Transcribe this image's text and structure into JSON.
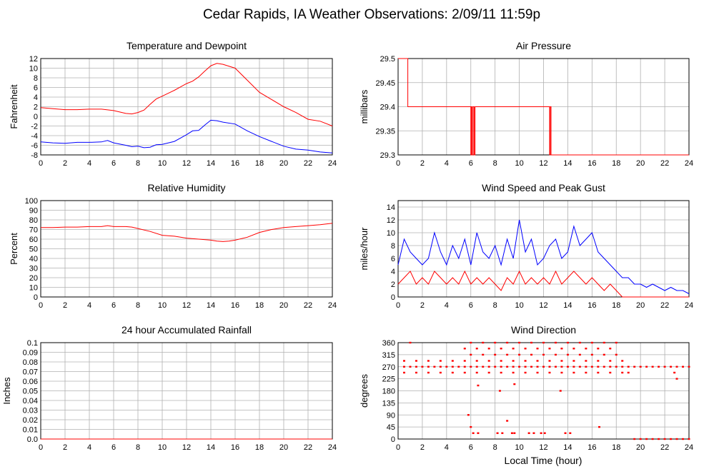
{
  "page": {
    "title": "Cedar Rapids, IA Weather Observations: 2/09/11 11:59p",
    "footer_xlabel": "Local Time (hour)"
  },
  "colors": {
    "primary": "#ff0000",
    "secondary": "#0000ff",
    "grid": "#b0b0b0",
    "axis": "#000000"
  },
  "chart_data": [
    {
      "id": "temperature",
      "type": "line",
      "title": "Temperature and Dewpoint",
      "ylabel": "Fahrenheit",
      "xlabel": "",
      "xlim": [
        0,
        24
      ],
      "ylim": [
        -8,
        12
      ],
      "xticks": [
        0,
        2,
        4,
        6,
        8,
        10,
        12,
        14,
        16,
        18,
        20,
        22,
        24
      ],
      "yticks": [
        -8,
        -6,
        -4,
        -2,
        0,
        2,
        4,
        6,
        8,
        10,
        12
      ],
      "ytick_labels": [
        "-8",
        "-6",
        "-4",
        "-2",
        "0",
        "2",
        "4",
        "6",
        "8",
        "10",
        "12"
      ],
      "grid": true,
      "noise": 0,
      "series": [
        {
          "color": "#ff0000",
          "x": [
            0,
            1,
            2,
            3,
            4,
            5,
            6,
            7,
            7.5,
            8,
            8.5,
            9,
            9.5,
            10,
            11,
            12,
            12.5,
            13,
            13.5,
            14,
            14.5,
            15,
            16,
            17,
            18,
            19,
            20,
            21,
            22,
            23,
            24
          ],
          "y": [
            1.8,
            1.6,
            1.4,
            1.4,
            1.5,
            1.5,
            1.2,
            0.6,
            0.5,
            0.8,
            1.3,
            2.5,
            3.6,
            4.2,
            5.4,
            6.8,
            7.3,
            8.2,
            9.4,
            10.5,
            11.0,
            10.8,
            10.0,
            7.5,
            5.0,
            3.5,
            2.0,
            0.8,
            -0.6,
            -1.0,
            -2.0
          ]
        },
        {
          "color": "#0000ff",
          "x": [
            0,
            1,
            2,
            3,
            4,
            5,
            5.5,
            6,
            7,
            7.5,
            8,
            8.5,
            9,
            9.5,
            10,
            11,
            12,
            12.5,
            13,
            13.5,
            14,
            14.5,
            15,
            16,
            17,
            18,
            19,
            20,
            21,
            22,
            23,
            24
          ],
          "y": [
            -5.3,
            -5.5,
            -5.6,
            -5.4,
            -5.4,
            -5.3,
            -5.0,
            -5.5,
            -6.0,
            -6.3,
            -6.2,
            -6.5,
            -6.4,
            -5.9,
            -5.8,
            -5.2,
            -3.8,
            -3.0,
            -2.9,
            -1.8,
            -0.8,
            -0.9,
            -1.2,
            -1.6,
            -3.0,
            -4.2,
            -5.2,
            -6.2,
            -6.8,
            -7.0,
            -7.4,
            -7.6
          ]
        }
      ]
    },
    {
      "id": "pressure",
      "type": "line",
      "title": "Air Pressure",
      "ylabel": "millibars",
      "xlabel": "",
      "xlim": [
        0,
        24
      ],
      "ylim": [
        29.3,
        29.5
      ],
      "xticks": [
        0,
        2,
        4,
        6,
        8,
        10,
        12,
        14,
        16,
        18,
        20,
        22,
        24
      ],
      "yticks": [
        29.3,
        29.35,
        29.4,
        29.45,
        29.5
      ],
      "ytick_labels": [
        "29.3",
        "29.35",
        "29.4",
        "29.45",
        "29.5"
      ],
      "grid": true,
      "series": [
        {
          "color": "#ff0000",
          "x": [
            0,
            0.8,
            0.8,
            6.0,
            6.0,
            6.05,
            6.05,
            6.12,
            6.12,
            6.2,
            6.2,
            6.28,
            6.28,
            6.35,
            6.35,
            6.42,
            6.42,
            12.5,
            12.5,
            12.55,
            12.55,
            12.62,
            12.62,
            12.7,
            12.7,
            24
          ],
          "y": [
            29.5,
            29.5,
            29.4,
            29.4,
            29.3,
            29.3,
            29.4,
            29.4,
            29.3,
            29.3,
            29.4,
            29.4,
            29.3,
            29.3,
            29.4,
            29.4,
            29.4,
            29.4,
            29.3,
            29.3,
            29.4,
            29.4,
            29.3,
            29.3,
            29.3,
            29.3
          ]
        }
      ]
    },
    {
      "id": "humidity",
      "type": "line",
      "title": "Relative Humidity",
      "ylabel": "Percent",
      "xlabel": "",
      "xlim": [
        0,
        24
      ],
      "ylim": [
        0,
        100
      ],
      "xticks": [
        0,
        2,
        4,
        6,
        8,
        10,
        12,
        14,
        16,
        18,
        20,
        22,
        24
      ],
      "yticks": [
        0,
        10,
        20,
        30,
        40,
        50,
        60,
        70,
        80,
        90,
        100
      ],
      "ytick_labels": [
        "0",
        "10",
        "20",
        "30",
        "40",
        "50",
        "60",
        "70",
        "80",
        "90",
        "100"
      ],
      "grid": true,
      "series": [
        {
          "color": "#ff0000",
          "x": [
            0,
            1,
            2,
            3,
            4,
            5,
            5.5,
            6,
            7,
            7.5,
            8,
            9,
            10,
            11,
            12,
            13,
            14,
            14.5,
            15,
            15.5,
            16,
            17,
            18,
            19,
            20,
            21,
            22,
            23,
            24
          ],
          "y": [
            72,
            72,
            72.5,
            72.5,
            73,
            73,
            74,
            73,
            73,
            72.5,
            71,
            68,
            64,
            63,
            61,
            60,
            59,
            58,
            57.5,
            58,
            59,
            62,
            67,
            70,
            72,
            73,
            74,
            75,
            76.5
          ]
        }
      ]
    },
    {
      "id": "wind",
      "type": "line",
      "title": "Wind Speed and Peak Gust",
      "ylabel": "miles/hour",
      "xlabel": "",
      "xlim": [
        0,
        24
      ],
      "ylim": [
        0,
        15
      ],
      "xticks": [
        0,
        2,
        4,
        6,
        8,
        10,
        12,
        14,
        16,
        18,
        20,
        22,
        24
      ],
      "yticks": [
        0,
        2,
        4,
        6,
        8,
        10,
        12,
        14
      ],
      "ytick_labels": [
        "0",
        "2",
        "4",
        "6",
        "8",
        "10",
        "12",
        "14"
      ],
      "grid": true,
      "series": [
        {
          "color": "#0000ff",
          "x": [
            0,
            0.5,
            1,
            1.5,
            2,
            2.5,
            3,
            3.5,
            4,
            4.5,
            5,
            5.5,
            6,
            6.5,
            7,
            7.5,
            8,
            8.5,
            9,
            9.5,
            10,
            10.5,
            11,
            11.5,
            12,
            12.5,
            13,
            13.5,
            14,
            14.5,
            15,
            15.5,
            16,
            16.5,
            17,
            17.5,
            18,
            18.5,
            19,
            19.5,
            20,
            20.5,
            21,
            21.5,
            22,
            22.5,
            23,
            23.5,
            24
          ],
          "y": [
            5,
            9,
            7,
            6,
            5,
            6,
            10,
            7,
            5,
            8,
            6,
            9,
            5,
            10,
            7,
            6,
            8,
            5,
            9,
            6,
            12,
            7,
            9,
            5,
            6,
            8,
            9,
            6,
            7,
            11,
            8,
            9,
            10,
            7,
            6,
            5,
            4,
            3,
            3,
            2,
            2,
            1.5,
            2,
            1.5,
            1,
            1.5,
            1,
            1,
            0.5
          ]
        },
        {
          "color": "#ff0000",
          "x": [
            0,
            0.5,
            1,
            1.5,
            2,
            2.5,
            3,
            3.5,
            4,
            4.5,
            5,
            5.5,
            6,
            6.5,
            7,
            7.5,
            8,
            8.5,
            9,
            9.5,
            10,
            10.5,
            11,
            11.5,
            12,
            12.5,
            13,
            13.5,
            14,
            14.5,
            15,
            15.5,
            16,
            16.5,
            17,
            17.5,
            18,
            18.5,
            19,
            19.5,
            20,
            20.5,
            21,
            21.5,
            22,
            22.5,
            23,
            23.5,
            24
          ],
          "y": [
            2,
            3,
            4,
            2,
            3,
            2,
            4,
            3,
            2,
            3,
            2,
            4,
            2,
            3,
            2,
            3,
            2,
            1,
            3,
            2,
            4,
            2,
            3,
            2,
            3,
            2,
            4,
            2,
            3,
            4,
            3,
            2,
            3,
            2,
            1,
            2,
            1,
            0,
            0,
            0,
            0,
            0,
            0,
            0,
            0,
            0,
            0,
            0,
            0
          ]
        }
      ]
    },
    {
      "id": "rainfall",
      "type": "line",
      "title": "24 hour Accumulated Rainfall",
      "ylabel": "Inches",
      "xlabel": "",
      "xlim": [
        0,
        24
      ],
      "ylim": [
        0,
        0.1
      ],
      "xticks": [
        0,
        2,
        4,
        6,
        8,
        10,
        12,
        14,
        16,
        18,
        20,
        22,
        24
      ],
      "yticks": [
        0,
        0.01,
        0.02,
        0.03,
        0.04,
        0.05,
        0.06,
        0.07,
        0.08,
        0.09,
        0.1
      ],
      "ytick_labels": [
        "0.0",
        "0.01",
        "0.02",
        "0.03",
        "0.04",
        "0.05",
        "0.06",
        "0.07",
        "0.08",
        "0.09",
        "0.1"
      ],
      "grid": true,
      "series": [
        {
          "color": "#ff0000",
          "x": [
            0,
            24
          ],
          "y": [
            0,
            0
          ]
        }
      ]
    },
    {
      "id": "direction",
      "type": "scatter",
      "title": "Wind Direction",
      "ylabel": "degrees",
      "xlabel": "Local Time (hour)",
      "xlim": [
        0,
        24
      ],
      "ylim": [
        0,
        360
      ],
      "xticks": [
        0,
        2,
        4,
        6,
        8,
        10,
        12,
        14,
        16,
        18,
        20,
        22,
        24
      ],
      "yticks": [
        0,
        45,
        90,
        135,
        180,
        225,
        270,
        315,
        360
      ],
      "ytick_labels": [
        "0",
        "45",
        "90",
        "135",
        "180",
        "225",
        "270",
        "315",
        "360"
      ],
      "grid": true,
      "series": [
        {
          "color": "#ff0000",
          "x": [
            0.5,
            1,
            1.5,
            2,
            2.5,
            3,
            3.5,
            4,
            4.5,
            5,
            5.5,
            6,
            6.5,
            7,
            7.5,
            8,
            8.5,
            9,
            9.5,
            10,
            10.5,
            11,
            11.5,
            12,
            12.5,
            13,
            13.5,
            14,
            14.5,
            15,
            15.5,
            16,
            16.5,
            17,
            17.5,
            18,
            18.5,
            19,
            19.5,
            20,
            20.5,
            21,
            21.5,
            22,
            22.5,
            23,
            23.5,
            24,
            0.5,
            1.5,
            2.5,
            3.5,
            4.5,
            5.5,
            6.5,
            7.5,
            8.5,
            9.5,
            10.5,
            11.5,
            12.5,
            13.5,
            14.5,
            15.5,
            16.5,
            17.5,
            18.5,
            0.5,
            1.5,
            2.5,
            3.5,
            4.5,
            5.5,
            6.5,
            7.5,
            8.5,
            9.5,
            10.5,
            11.5,
            12.5,
            13.5,
            14.5,
            15.5,
            16.5,
            17.5,
            18.5,
            19,
            5.8,
            6.0,
            6.2,
            6.6,
            8.2,
            8.6,
            9.0,
            9.4,
            9.6,
            10.8,
            11.2,
            11.8,
            12.1,
            13.8,
            14.2,
            16.6,
            19.5,
            20,
            20.5,
            21,
            21.5,
            22,
            22.5,
            23,
            23.5,
            24,
            6,
            7,
            8,
            9,
            10,
            11,
            12,
            13,
            14,
            15,
            16,
            17,
            18,
            5.5,
            6.5,
            7.5,
            8.5,
            9.5,
            10.5,
            11.5,
            12.5,
            13.5,
            14.5,
            15.5,
            16.5,
            17.5,
            1,
            6,
            7,
            8,
            9,
            10,
            11,
            12,
            13,
            14,
            15,
            16,
            17,
            18,
            6.6,
            8.4,
            9.6,
            13.4,
            22.8,
            23
          ],
          "y": [
            270,
            270,
            270,
            270,
            270,
            270,
            270,
            270,
            270,
            270,
            270,
            270,
            270,
            270,
            270,
            270,
            270,
            270,
            270,
            270,
            270,
            270,
            270,
            270,
            270,
            270,
            270,
            270,
            270,
            270,
            270,
            270,
            270,
            270,
            270,
            270,
            270,
            270,
            270,
            270,
            270,
            270,
            270,
            270,
            270,
            270,
            270,
            270,
            292,
            292,
            292,
            292,
            292,
            292,
            292,
            292,
            292,
            292,
            292,
            292,
            292,
            292,
            292,
            292,
            292,
            292,
            292,
            248,
            248,
            248,
            248,
            248,
            248,
            248,
            248,
            248,
            248,
            248,
            248,
            248,
            248,
            248,
            248,
            248,
            248,
            248,
            248,
            90,
            45,
            22,
            22,
            22,
            22,
            68,
            22,
            22,
            22,
            22,
            22,
            22,
            22,
            22,
            45,
            0,
            0,
            0,
            0,
            0,
            0,
            0,
            0,
            0,
            0,
            315,
            315,
            315,
            315,
            315,
            315,
            315,
            315,
            315,
            315,
            315,
            315,
            315,
            338,
            338,
            338,
            338,
            338,
            338,
            338,
            338,
            338,
            338,
            338,
            338,
            338,
            360,
            360,
            360,
            360,
            360,
            360,
            360,
            360,
            360,
            360,
            360,
            360,
            360,
            360,
            200,
            180,
            205,
            180,
            248,
            225
          ]
        }
      ]
    }
  ]
}
